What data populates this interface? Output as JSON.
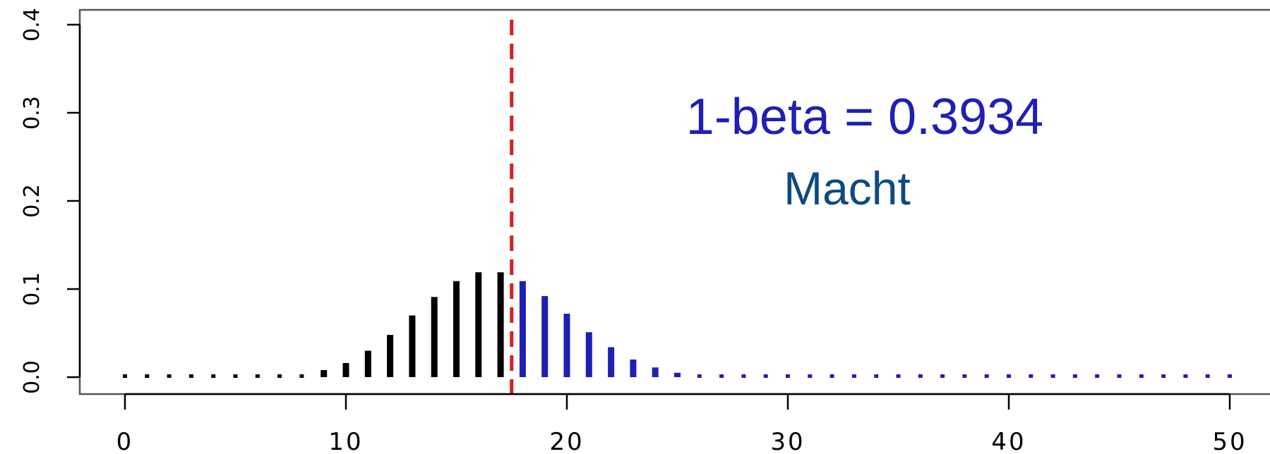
{
  "chart_data": {
    "type": "bar",
    "title": "",
    "xlabel": "",
    "ylabel": "",
    "xlim": [
      0,
      50
    ],
    "ylim": [
      0.0,
      0.4
    ],
    "x_ticks": [
      0,
      10,
      20,
      30,
      40,
      50
    ],
    "x_tick_labels": [
      "0",
      "10",
      "20",
      "30",
      "40",
      "50"
    ],
    "y_ticks": [
      0.0,
      0.1,
      0.2,
      0.3,
      0.4
    ],
    "y_tick_labels": [
      "0.0",
      "0.1",
      "0.2",
      "0.3",
      "0.4"
    ],
    "critical_value": 17.5,
    "grid": false,
    "series": [
      {
        "color": "#000000",
        "x": [
          0,
          1,
          2,
          3,
          4,
          5,
          6,
          7,
          8,
          9,
          10,
          11,
          12,
          13,
          14,
          15,
          16,
          17
        ],
        "values": [
          0.0,
          0.0,
          0.0,
          0.0,
          0.0,
          0.0,
          0.0,
          0.001,
          0.003,
          0.008,
          0.016,
          0.03,
          0.048,
          0.07,
          0.091,
          0.109,
          0.119,
          0.119
        ]
      },
      {
        "color": "#1f1fb4",
        "x": [
          18,
          19,
          20,
          21,
          22,
          23,
          24,
          25,
          26,
          27,
          28,
          29,
          30,
          31,
          32,
          33,
          34,
          35,
          36,
          37,
          38,
          39,
          40,
          41,
          42,
          43,
          44,
          45,
          46,
          47,
          48,
          49,
          50
        ],
        "values": [
          0.109,
          0.092,
          0.072,
          0.051,
          0.034,
          0.02,
          0.011,
          0.005,
          0.002,
          0.001,
          0.0,
          0.0,
          0.0,
          0.0,
          0.0,
          0.0,
          0.0,
          0.0,
          0.0,
          0.0,
          0.0,
          0.0,
          0.0,
          0.0,
          0.0,
          0.0,
          0.0,
          0.0,
          0.0,
          0.0,
          0.0,
          0.0,
          0.0
        ]
      }
    ],
    "annotations": [
      {
        "text": "1-beta = 0.3934",
        "color": "#1f1fb4"
      },
      {
        "text": "Macht",
        "color": "#0d4a80"
      }
    ],
    "colors": {
      "axis": "#000000",
      "critical_line": "#d42020"
    }
  }
}
